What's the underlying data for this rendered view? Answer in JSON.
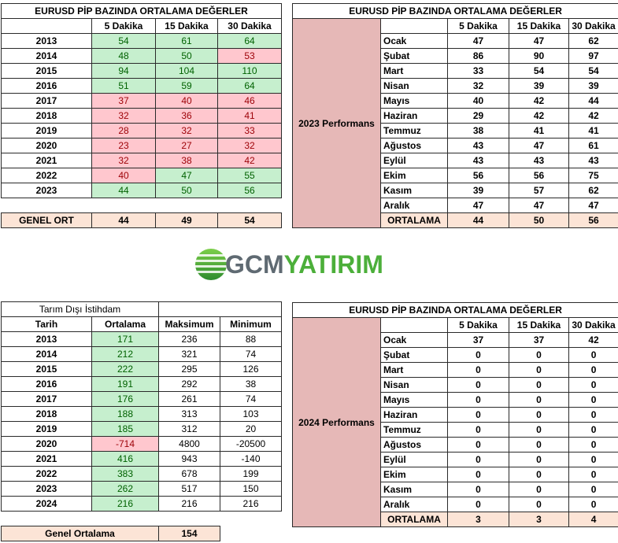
{
  "eurusd_table": {
    "title": "EURUSD  PİP BAZINDA ORTALAMA DEĞERLER",
    "headers": [
      "",
      "5 Dakika",
      "15 Dakika",
      "30 Dakika"
    ],
    "rows": [
      {
        "year": "2013",
        "v": [
          "54",
          "61",
          "64"
        ],
        "c": [
          "g",
          "g",
          "g"
        ]
      },
      {
        "year": "2014",
        "v": [
          "48",
          "50",
          "53"
        ],
        "c": [
          "g",
          "g",
          "r"
        ]
      },
      {
        "year": "2015",
        "v": [
          "94",
          "104",
          "110"
        ],
        "c": [
          "g",
          "g",
          "g"
        ]
      },
      {
        "year": "2016",
        "v": [
          "51",
          "59",
          "64"
        ],
        "c": [
          "g",
          "g",
          "g"
        ]
      },
      {
        "year": "2017",
        "v": [
          "37",
          "40",
          "46"
        ],
        "c": [
          "r",
          "r",
          "r"
        ]
      },
      {
        "year": "2018",
        "v": [
          "32",
          "36",
          "41"
        ],
        "c": [
          "r",
          "r",
          "r"
        ]
      },
      {
        "year": "2019",
        "v": [
          "28",
          "32",
          "33"
        ],
        "c": [
          "r",
          "r",
          "r"
        ]
      },
      {
        "year": "2020",
        "v": [
          "23",
          "27",
          "32"
        ],
        "c": [
          "r",
          "r",
          "r"
        ]
      },
      {
        "year": "2021",
        "v": [
          "32",
          "38",
          "42"
        ],
        "c": [
          "r",
          "r",
          "r"
        ]
      },
      {
        "year": "2022",
        "v": [
          "40",
          "47",
          "55"
        ],
        "c": [
          "r",
          "g",
          "g"
        ]
      },
      {
        "year": "2023",
        "v": [
          "44",
          "50",
          "56"
        ],
        "c": [
          "g",
          "g",
          "g"
        ]
      }
    ],
    "total_label": "GENEL ORT",
    "total": [
      "44",
      "49",
      "54"
    ]
  },
  "perf_2023": {
    "title": "EURUSD  PİP BAZINDA ORTALAMA DEĞERLER",
    "headers": [
      "5 Dakika",
      "15 Dakika",
      "30 Dakika"
    ],
    "side_label": "2023 Performans",
    "rows": [
      {
        "month": "Ocak",
        "v": [
          "47",
          "47",
          "62"
        ]
      },
      {
        "month": "Şubat",
        "v": [
          "86",
          "90",
          "97"
        ]
      },
      {
        "month": "Mart",
        "v": [
          "33",
          "54",
          "54"
        ]
      },
      {
        "month": "Nisan",
        "v": [
          "32",
          "39",
          "39"
        ]
      },
      {
        "month": "Mayıs",
        "v": [
          "40",
          "42",
          "44"
        ]
      },
      {
        "month": "Haziran",
        "v": [
          "29",
          "42",
          "42"
        ]
      },
      {
        "month": "Temmuz",
        "v": [
          "38",
          "41",
          "41"
        ]
      },
      {
        "month": "Ağustos",
        "v": [
          "43",
          "47",
          "61"
        ]
      },
      {
        "month": "Eylül",
        "v": [
          "43",
          "43",
          "43"
        ]
      },
      {
        "month": "Ekim",
        "v": [
          "56",
          "56",
          "75"
        ]
      },
      {
        "month": "Kasım",
        "v": [
          "39",
          "57",
          "62"
        ]
      },
      {
        "month": "Aralık",
        "v": [
          "47",
          "47",
          "47"
        ]
      }
    ],
    "total_label": "ORTALAMA",
    "total": [
      "44",
      "50",
      "56"
    ]
  },
  "logo": {
    "part1": "GCM",
    "part2": "YATIRIM"
  },
  "nfp_table": {
    "title": "Tarım Dışı İstihdam",
    "headers": [
      "Tarih",
      "Ortalama",
      "Maksimum",
      "Minimum"
    ],
    "rows": [
      {
        "year": "2013",
        "v": [
          "171",
          "236",
          "88"
        ],
        "c": "g"
      },
      {
        "year": "2014",
        "v": [
          "212",
          "321",
          "74"
        ],
        "c": "g"
      },
      {
        "year": "2015",
        "v": [
          "222",
          "295",
          "126"
        ],
        "c": "g"
      },
      {
        "year": "2016",
        "v": [
          "191",
          "292",
          "38"
        ],
        "c": "g"
      },
      {
        "year": "2017",
        "v": [
          "176",
          "261",
          "74"
        ],
        "c": "g"
      },
      {
        "year": "2018",
        "v": [
          "188",
          "313",
          "103"
        ],
        "c": "g"
      },
      {
        "year": "2019",
        "v": [
          "185",
          "312",
          "20"
        ],
        "c": "g"
      },
      {
        "year": "2020",
        "v": [
          "-714",
          "4800",
          "-20500"
        ],
        "c": "r"
      },
      {
        "year": "2021",
        "v": [
          "416",
          "943",
          "-140"
        ],
        "c": "g"
      },
      {
        "year": "2022",
        "v": [
          "383",
          "678",
          "199"
        ],
        "c": "g"
      },
      {
        "year": "2023",
        "v": [
          "262",
          "517",
          "150"
        ],
        "c": "g"
      },
      {
        "year": "2024",
        "v": [
          "216",
          "216",
          "216"
        ],
        "c": "g"
      }
    ],
    "total_label": "Genel Ortalama",
    "total": "154"
  },
  "perf_2024": {
    "title": "EURUSD  PİP BAZINDA ORTALAMA DEĞERLER",
    "headers": [
      "5 Dakika",
      "15 Dakika",
      "30 Dakika"
    ],
    "side_label": "2024 Performans",
    "rows": [
      {
        "month": "Ocak",
        "v": [
          "37",
          "37",
          "42"
        ]
      },
      {
        "month": "Şubat",
        "v": [
          "0",
          "0",
          "0"
        ]
      },
      {
        "month": "Mart",
        "v": [
          "0",
          "0",
          "0"
        ]
      },
      {
        "month": "Nisan",
        "v": [
          "0",
          "0",
          "0"
        ]
      },
      {
        "month": "Mayıs",
        "v": [
          "0",
          "0",
          "0"
        ]
      },
      {
        "month": "Haziran",
        "v": [
          "0",
          "0",
          "0"
        ]
      },
      {
        "month": "Temmuz",
        "v": [
          "0",
          "0",
          "0"
        ]
      },
      {
        "month": "Ağustos",
        "v": [
          "0",
          "0",
          "0"
        ]
      },
      {
        "month": "Eylül",
        "v": [
          "0",
          "0",
          "0"
        ]
      },
      {
        "month": "Ekim",
        "v": [
          "0",
          "0",
          "0"
        ]
      },
      {
        "month": "Kasım",
        "v": [
          "0",
          "0",
          "0"
        ]
      },
      {
        "month": "Aralık",
        "v": [
          "0",
          "0",
          "0"
        ]
      }
    ],
    "total_label": "ORTALAMA",
    "total": [
      "3",
      "3",
      "4"
    ]
  }
}
